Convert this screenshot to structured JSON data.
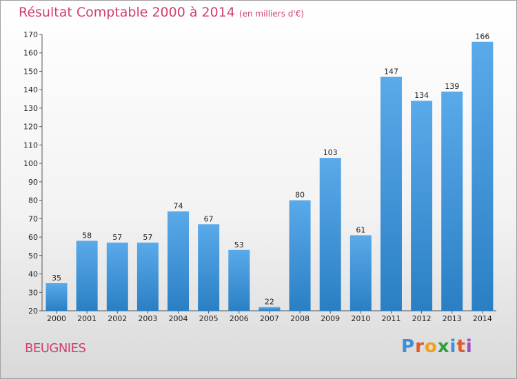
{
  "header": {
    "title": "Résultat Comptable 2000 à 2014",
    "subtitle": "(en milliers d'€)"
  },
  "commune": "BEUGNIES",
  "logo": {
    "text": "Proxiti"
  },
  "colors": {
    "bar_top": "#5aaaea",
    "bar_bottom": "#2a7fc4",
    "title": "#d0406a"
  },
  "chart_data": {
    "type": "bar",
    "title": "Résultat Comptable 2000 à 2014",
    "subtitle": "(en milliers d'€)",
    "categories": [
      "2000",
      "2001",
      "2002",
      "2003",
      "2004",
      "2005",
      "2006",
      "2007",
      "2008",
      "2009",
      "2010",
      "2011",
      "2012",
      "2013",
      "2014"
    ],
    "values": [
      35,
      58,
      57,
      57,
      74,
      67,
      53,
      22,
      80,
      103,
      61,
      147,
      134,
      139,
      166
    ],
    "ylim": [
      20,
      170
    ],
    "yticks": [
      20,
      30,
      40,
      50,
      60,
      70,
      80,
      90,
      100,
      110,
      120,
      130,
      140,
      150,
      160,
      170
    ],
    "grid": false,
    "legend": "none"
  }
}
